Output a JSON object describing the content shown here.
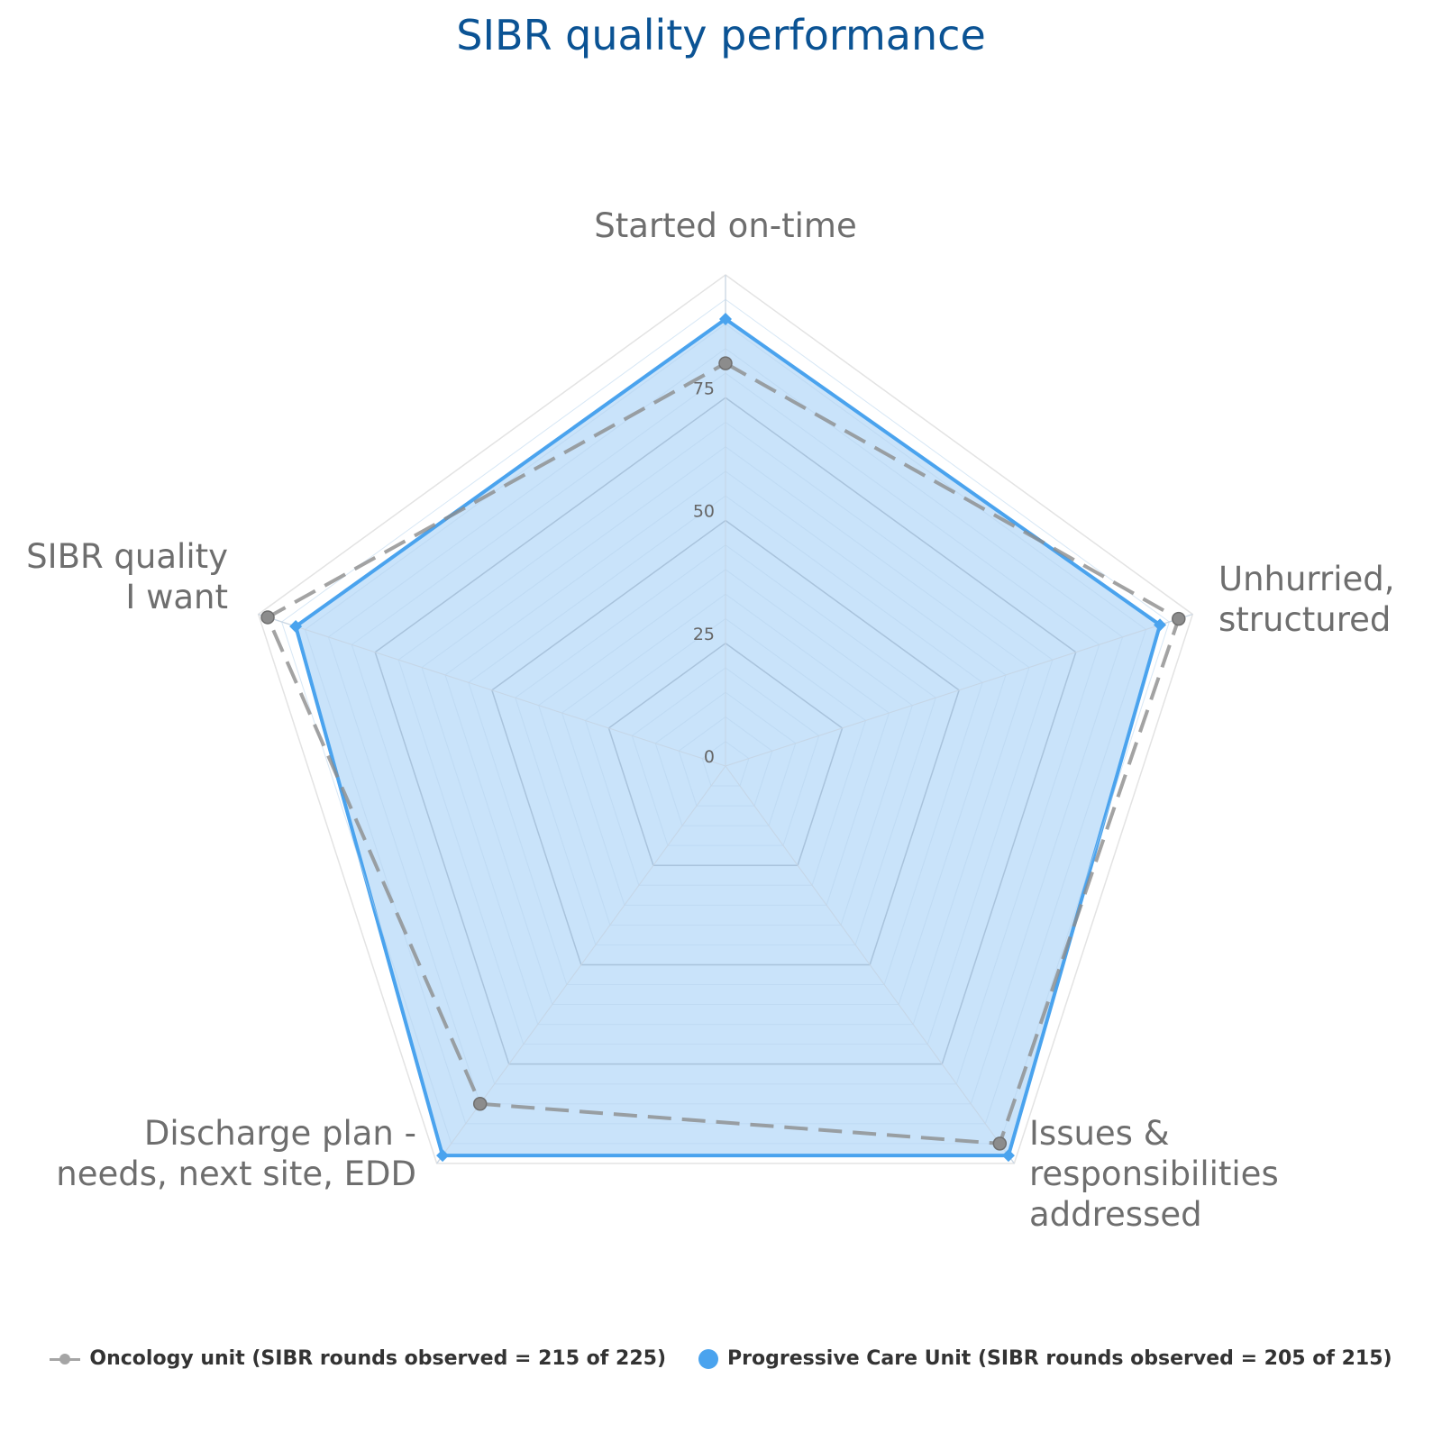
{
  "chart_data": {
    "type": "radar",
    "title": "SIBR quality performance",
    "axes": [
      "Started on-time",
      "Unhurried, structured",
      "Issues & responsibilities addressed",
      "Discharge plan - needs, next site, EDD",
      "SIBR quality I want"
    ],
    "axis_label_lines": [
      [
        "Started on-time"
      ],
      [
        "Unhurried,",
        "structured"
      ],
      [
        "Issues &",
        "responsibilities",
        "addressed"
      ],
      [
        "Discharge plan -",
        "needs, next site, EDD"
      ],
      [
        "SIBR quality",
        "I want"
      ]
    ],
    "r_range": [
      0,
      100
    ],
    "ticks": [
      0,
      25,
      50,
      75
    ],
    "series": [
      {
        "name": "Oncology unit (SIBR rounds observed = 215 of 225)",
        "values": [
          82,
          97,
          95,
          85,
          98
        ],
        "color": "#8c8c8c",
        "style": "dashed-line-circle-markers"
      },
      {
        "name": "Progressive Care Unit (SIBR rounds observed = 205 of 215)",
        "values": [
          91,
          93,
          98,
          98,
          92
        ],
        "color": "#4aa3ee",
        "fill": "#c4e1fa",
        "style": "filled-area-diamond-markers"
      }
    ],
    "legend_position": "bottom"
  }
}
